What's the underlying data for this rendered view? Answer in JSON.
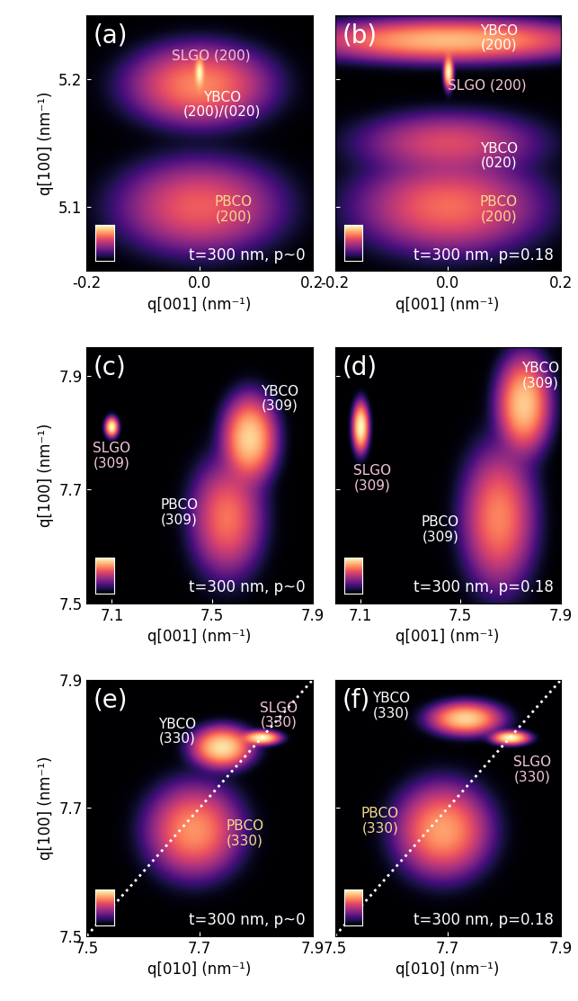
{
  "chart_data": [
    {
      "type": "heatmap",
      "panel": "(a)",
      "note": "t=300 nm, p~0",
      "xlabel": "q[001] (nm⁻¹)",
      "ylabel": "q[100] (nm⁻¹)",
      "xlim": [
        -0.2,
        0.2
      ],
      "ylim": [
        5.05,
        5.25
      ],
      "xticks": [
        -0.2,
        0.0,
        0.2
      ],
      "yticks": [
        5.1,
        5.2
      ],
      "peaks": [
        {
          "x": 0.0,
          "y": 5.205,
          "width": [
            0.004,
            0.006
          ],
          "intensity": 1.0
        },
        {
          "x": 0.0,
          "y": 5.195,
          "width": [
            0.06,
            0.015
          ],
          "intensity": 0.45
        },
        {
          "x": 0.0,
          "y": 5.1,
          "width": [
            0.07,
            0.018
          ],
          "intensity": 0.3
        }
      ],
      "annotations": [
        {
          "text": "SLGO (200)",
          "x": 0.02,
          "y": 5.218,
          "color": "#f3c6d8"
        },
        {
          "text": "YBCO\n(200)/(020)",
          "x": 0.04,
          "y": 5.18,
          "color": "#ffffff"
        },
        {
          "text": "PBCO\n(200)",
          "x": 0.06,
          "y": 5.098,
          "color": "#f6d98a"
        }
      ]
    },
    {
      "type": "heatmap",
      "panel": "(b)",
      "note": "t=300 nm, p=0.18",
      "xlabel": "q[001] (nm⁻¹)",
      "tick_labels": "x",
      "xlim": [
        -0.2,
        0.2
      ],
      "ylim": [
        5.05,
        5.25
      ],
      "xticks": [
        -0.2,
        0.0,
        0.2
      ],
      "yticks": [
        5.1,
        5.2
      ],
      "peaks": [
        {
          "x": 0.0,
          "y": 5.23,
          "width": [
            0.12,
            0.008
          ],
          "intensity": 0.55
        },
        {
          "x": 0.0,
          "y": 5.205,
          "width": [
            0.004,
            0.006
          ],
          "intensity": 1.0
        },
        {
          "x": 0.0,
          "y": 5.15,
          "width": [
            0.08,
            0.012
          ],
          "intensity": 0.18
        },
        {
          "x": 0.0,
          "y": 5.1,
          "width": [
            0.08,
            0.018
          ],
          "intensity": 0.28
        }
      ],
      "annotations": [
        {
          "text": "YBCO\n(200)",
          "x": 0.09,
          "y": 5.232,
          "color": "#ffffff"
        },
        {
          "text": "SLGO (200)",
          "x": 0.07,
          "y": 5.195,
          "color": "#f3c6d8"
        },
        {
          "text": "YBCO\n(020)",
          "x": 0.09,
          "y": 5.14,
          "color": "#ffffff"
        },
        {
          "text": "PBCO\n(200)",
          "x": 0.09,
          "y": 5.098,
          "color": "#f6d98a"
        }
      ]
    },
    {
      "type": "heatmap",
      "panel": "(c)",
      "note": "t=300 nm, p~0",
      "xlabel": "q[001] (nm⁻¹)",
      "ylabel": "q[100] (nm⁻¹)",
      "xlim": [
        7.0,
        7.9
      ],
      "ylim": [
        7.5,
        7.95
      ],
      "xticks": [
        7.1,
        7.5,
        7.9
      ],
      "yticks": [
        7.5,
        7.7,
        7.9
      ],
      "peaks": [
        {
          "x": 7.1,
          "y": 7.81,
          "width": [
            0.012,
            0.008
          ],
          "intensity": 1.0
        },
        {
          "x": 7.65,
          "y": 7.79,
          "width": [
            0.05,
            0.035
          ],
          "intensity": 0.7
        },
        {
          "x": 7.56,
          "y": 7.65,
          "width": [
            0.07,
            0.05
          ],
          "intensity": 0.3
        }
      ],
      "annotations": [
        {
          "text": "SLGO\n(309)",
          "x": 7.1,
          "y": 7.76,
          "color": "#f3c6d8"
        },
        {
          "text": "YBCO\n(309)",
          "x": 7.77,
          "y": 7.86,
          "color": "#ffffff"
        },
        {
          "text": "PBCO\n(309)",
          "x": 7.37,
          "y": 7.66,
          "color": "#ffffff"
        }
      ]
    },
    {
      "type": "heatmap",
      "panel": "(d)",
      "note": "t=300 nm, p=0.18",
      "xlabel": "q[001] (nm⁻¹)",
      "tick_labels": "x",
      "xlim": [
        7.0,
        7.9
      ],
      "ylim": [
        7.5,
        7.95
      ],
      "xticks": [
        7.1,
        7.5,
        7.9
      ],
      "yticks": [
        7.5,
        7.7,
        7.9
      ],
      "peaks": [
        {
          "x": 7.1,
          "y": 7.81,
          "width": [
            0.015,
            0.02
          ],
          "intensity": 1.0
        },
        {
          "x": 7.75,
          "y": 7.85,
          "width": [
            0.05,
            0.04
          ],
          "intensity": 0.65
        },
        {
          "x": 7.65,
          "y": 7.65,
          "width": [
            0.07,
            0.06
          ],
          "intensity": 0.35
        }
      ],
      "annotations": [
        {
          "text": "SLGO\n(309)",
          "x": 7.15,
          "y": 7.72,
          "color": "#f3c6d8"
        },
        {
          "text": "YBCO\n(309)",
          "x": 7.82,
          "y": 7.9,
          "color": "#ffffff"
        },
        {
          "text": "PBCO\n(309)",
          "x": 7.42,
          "y": 7.63,
          "color": "#ffffff"
        }
      ]
    },
    {
      "type": "heatmap",
      "panel": "(e)",
      "note": "t=300 nm, p~0",
      "xlabel": "q[010] (nm⁻¹)",
      "ylabel": "q[100] (nm⁻¹)",
      "xlim": [
        7.5,
        7.9
      ],
      "ylim": [
        7.5,
        7.9
      ],
      "xticks": [
        7.5,
        7.7,
        7.9
      ],
      "yticks": [
        7.5,
        7.7,
        7.9
      ],
      "peaks": [
        {
          "x": 7.74,
          "y": 7.795,
          "width": [
            0.025,
            0.015
          ],
          "intensity": 0.8
        },
        {
          "x": 7.81,
          "y": 7.81,
          "width": [
            0.015,
            0.005
          ],
          "intensity": 1.0
        },
        {
          "x": 7.69,
          "y": 7.665,
          "width": [
            0.04,
            0.035
          ],
          "intensity": 0.4
        }
      ],
      "annotations": [
        {
          "text": "YBCO\n(330)",
          "x": 7.66,
          "y": 7.82,
          "color": "#ffffff"
        },
        {
          "text": "SLGO\n(330)",
          "x": 7.84,
          "y": 7.845,
          "color": "#f3c6d8"
        },
        {
          "text": "PBCO\n(330)",
          "x": 7.78,
          "y": 7.66,
          "color": "#f6d98a"
        }
      ]
    },
    {
      "type": "heatmap",
      "panel": "(f)",
      "note": "t=300 nm, p=0.18",
      "xlabel": "q[010] (nm⁻¹)",
      "tick_labels": "x",
      "xlim": [
        7.5,
        7.9
      ],
      "ylim": [
        7.5,
        7.9
      ],
      "xticks": [
        7.5,
        7.7,
        7.9
      ],
      "yticks": [
        7.5,
        7.7,
        7.9
      ],
      "peaks": [
        {
          "x": 7.73,
          "y": 7.84,
          "width": [
            0.03,
            0.012
          ],
          "intensity": 0.7
        },
        {
          "x": 7.81,
          "y": 7.81,
          "width": [
            0.015,
            0.005
          ],
          "intensity": 1.0
        },
        {
          "x": 7.69,
          "y": 7.665,
          "width": [
            0.04,
            0.035
          ],
          "intensity": 0.45
        }
      ],
      "annotations": [
        {
          "text": "YBCO\n(330)",
          "x": 7.6,
          "y": 7.86,
          "color": "#ffffff"
        },
        {
          "text": "SLGO\n(330)",
          "x": 7.85,
          "y": 7.76,
          "color": "#f3c6d8"
        },
        {
          "text": "PBCO\n(330)",
          "x": 7.58,
          "y": 7.68,
          "color": "#f6d98a"
        }
      ]
    }
  ]
}
